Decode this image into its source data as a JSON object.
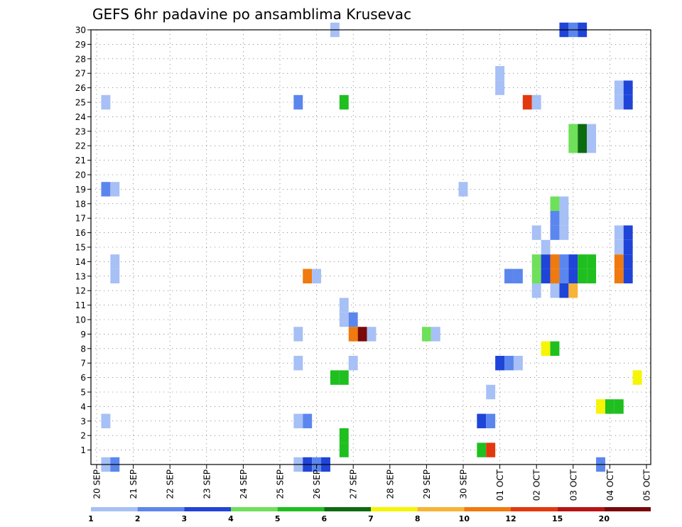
{
  "chart_data": {
    "type": "heatmap",
    "title": "GEFS 6hr padavine po ansamblima Krusevac",
    "y_ticks": [
      "1",
      "2",
      "3",
      "4",
      "5",
      "6",
      "7",
      "8",
      "9",
      "10",
      "11",
      "12",
      "13",
      "14",
      "15",
      "16",
      "17",
      "18",
      "19",
      "20",
      "21",
      "22",
      "23",
      "24",
      "25",
      "26",
      "27",
      "28",
      "29",
      "30"
    ],
    "x_ticks": [
      "20 SEP",
      "21 SEP",
      "22 SEP",
      "23 SEP",
      "24 SEP",
      "25 SEP",
      "26 SEP",
      "27 SEP",
      "28 SEP",
      "29 SEP",
      "30 SEP",
      "01 OCT",
      "02 OCT",
      "03 OCT",
      "04 OCT",
      "05 OCT"
    ],
    "grid": true,
    "legend_position": "bottom",
    "color_scale": [
      {
        "label": "1",
        "color": "#a7c0f5"
      },
      {
        "label": "2",
        "color": "#5b86ee"
      },
      {
        "label": "3",
        "color": "#1f44d8"
      },
      {
        "label": "4",
        "color": "#6fe05a"
      },
      {
        "label": "5",
        "color": "#1fbf1f"
      },
      {
        "label": "6",
        "color": "#0b6b10"
      },
      {
        "label": "7",
        "color": "#f5f505"
      },
      {
        "label": "8",
        "color": "#f7b436"
      },
      {
        "label": "10",
        "color": "#f07a0e"
      },
      {
        "label": "12",
        "color": "#e3380e"
      },
      {
        "label": "15",
        "color": "#b81414"
      },
      {
        "label": "20",
        "color": "#7a0909"
      }
    ],
    "cells": [
      {
        "x": "20 SEP 06Z",
        "member": 0,
        "level": 1
      },
      {
        "x": "20 SEP 12Z",
        "member": 0,
        "level": 2
      },
      {
        "x": "20 SEP 06Z",
        "member": 3,
        "level": 1
      },
      {
        "x": "20 SEP 12Z",
        "member": 13,
        "level": 1
      },
      {
        "x": "20 SEP 12Z",
        "member": 14,
        "level": 1
      },
      {
        "x": "20 SEP 06Z",
        "member": 19,
        "level": 2
      },
      {
        "x": "20 SEP 12Z",
        "member": 19,
        "level": 1
      },
      {
        "x": "20 SEP 06Z",
        "member": 25,
        "level": 1
      },
      {
        "x": "25 SEP 12Z",
        "member": 0,
        "level": 1
      },
      {
        "x": "25 SEP 18Z",
        "member": 0,
        "level": 3
      },
      {
        "x": "26 SEP 00Z",
        "member": 0,
        "level": 2
      },
      {
        "x": "26 SEP 06Z",
        "member": 0,
        "level": 3
      },
      {
        "x": "25 SEP 12Z",
        "member": 3,
        "level": 1
      },
      {
        "x": "25 SEP 18Z",
        "member": 3,
        "level": 2
      },
      {
        "x": "25 SEP 12Z",
        "member": 7,
        "level": 1
      },
      {
        "x": "25 SEP 12Z",
        "member": 9,
        "level": 1
      },
      {
        "x": "25 SEP 18Z",
        "member": 13,
        "level": 10
      },
      {
        "x": "26 SEP 00Z",
        "member": 13,
        "level": 1
      },
      {
        "x": "25 SEP 12Z",
        "member": 25,
        "level": 2
      },
      {
        "x": "26 SEP 12Z",
        "member": 30,
        "level": 1
      },
      {
        "x": "26 SEP 18Z",
        "member": 1,
        "level": 5
      },
      {
        "x": "26 SEP 18Z",
        "member": 2,
        "level": 5
      },
      {
        "x": "26 SEP 12Z",
        "member": 6,
        "level": 5
      },
      {
        "x": "26 SEP 18Z",
        "member": 6,
        "level": 5
      },
      {
        "x": "27 SEP 00Z",
        "member": 7,
        "level": 1
      },
      {
        "x": "27 SEP 00Z",
        "member": 9,
        "level": 10
      },
      {
        "x": "27 SEP 06Z",
        "member": 9,
        "level": 20
      },
      {
        "x": "27 SEP 12Z",
        "member": 9,
        "level": 1
      },
      {
        "x": "26 SEP 18Z",
        "member": 10,
        "level": 1
      },
      {
        "x": "27 SEP 00Z",
        "member": 10,
        "level": 2
      },
      {
        "x": "26 SEP 18Z",
        "member": 11,
        "level": 1
      },
      {
        "x": "26 SEP 18Z",
        "member": 25,
        "level": 5
      },
      {
        "x": "29 SEP 00Z",
        "member": 9,
        "level": 4
      },
      {
        "x": "29 SEP 06Z",
        "member": 9,
        "level": 1
      },
      {
        "x": "30 SEP 00Z",
        "member": 19,
        "level": 1
      },
      {
        "x": "30 SEP 12Z",
        "member": 1,
        "level": 5
      },
      {
        "x": "30 SEP 18Z",
        "member": 1,
        "level": 12
      },
      {
        "x": "30 SEP 12Z",
        "member": 3,
        "level": 3
      },
      {
        "x": "30 SEP 18Z",
        "member": 3,
        "level": 2
      },
      {
        "x": "30 SEP 18Z",
        "member": 5,
        "level": 1
      },
      {
        "x": "01 OCT 00Z",
        "member": 7,
        "level": 3
      },
      {
        "x": "01 OCT 06Z",
        "member": 7,
        "level": 2
      },
      {
        "x": "01 OCT 12Z",
        "member": 7,
        "level": 1
      },
      {
        "x": "01 OCT 06Z",
        "member": 13,
        "level": 2
      },
      {
        "x": "01 OCT 12Z",
        "member": 13,
        "level": 2
      },
      {
        "x": "01 OCT 00Z",
        "member": 26,
        "level": 1
      },
      {
        "x": "01 OCT 00Z",
        "member": 27,
        "level": 1
      },
      {
        "x": "01 OCT 18Z",
        "member": 25,
        "level": 12
      },
      {
        "x": "02 OCT 00Z",
        "member": 25,
        "level": 1
      },
      {
        "x": "02 OCT 06Z",
        "member": 8,
        "level": 7
      },
      {
        "x": "02 OCT 12Z",
        "member": 8,
        "level": 5
      },
      {
        "x": "02 OCT 00Z",
        "member": 12,
        "level": 1
      },
      {
        "x": "02 OCT 12Z",
        "member": 12,
        "level": 1
      },
      {
        "x": "02 OCT 18Z",
        "member": 12,
        "level": 3
      },
      {
        "x": "03 OCT 00Z",
        "member": 12,
        "level": 8
      },
      {
        "x": "02 OCT 00Z",
        "member": 13,
        "level": 4
      },
      {
        "x": "02 OCT 06Z",
        "member": 13,
        "level": 3
      },
      {
        "x": "02 OCT 12Z",
        "member": 13,
        "level": 10
      },
      {
        "x": "02 OCT 18Z",
        "member": 13,
        "level": 2
      },
      {
        "x": "03 OCT 00Z",
        "member": 13,
        "level": 3
      },
      {
        "x": "03 OCT 06Z",
        "member": 13,
        "level": 5
      },
      {
        "x": "03 OCT 12Z",
        "member": 13,
        "level": 5
      },
      {
        "x": "02 OCT 00Z",
        "member": 14,
        "level": 4
      },
      {
        "x": "02 OCT 06Z",
        "member": 14,
        "level": 3
      },
      {
        "x": "02 OCT 12Z",
        "member": 14,
        "level": 10
      },
      {
        "x": "02 OCT 18Z",
        "member": 14,
        "level": 2
      },
      {
        "x": "03 OCT 00Z",
        "member": 14,
        "level": 3
      },
      {
        "x": "03 OCT 06Z",
        "member": 14,
        "level": 5
      },
      {
        "x": "03 OCT 12Z",
        "member": 14,
        "level": 5
      },
      {
        "x": "02 OCT 06Z",
        "member": 15,
        "level": 1
      },
      {
        "x": "02 OCT 00Z",
        "member": 16,
        "level": 1
      },
      {
        "x": "02 OCT 12Z",
        "member": 16,
        "level": 2
      },
      {
        "x": "02 OCT 18Z",
        "member": 16,
        "level": 1
      },
      {
        "x": "02 OCT 12Z",
        "member": 17,
        "level": 2
      },
      {
        "x": "02 OCT 18Z",
        "member": 17,
        "level": 1
      },
      {
        "x": "02 OCT 12Z",
        "member": 18,
        "level": 4
      },
      {
        "x": "02 OCT 18Z",
        "member": 18,
        "level": 1
      },
      {
        "x": "03 OCT 00Z",
        "member": 22,
        "level": 4
      },
      {
        "x": "03 OCT 06Z",
        "member": 22,
        "level": 6
      },
      {
        "x": "03 OCT 12Z",
        "member": 22,
        "level": 1
      },
      {
        "x": "03 OCT 00Z",
        "member": 23,
        "level": 4
      },
      {
        "x": "03 OCT 06Z",
        "member": 23,
        "level": 6
      },
      {
        "x": "03 OCT 12Z",
        "member": 23,
        "level": 1
      },
      {
        "x": "02 OCT 18Z",
        "member": 30,
        "level": 3
      },
      {
        "x": "03 OCT 00Z",
        "member": 30,
        "level": 2
      },
      {
        "x": "03 OCT 06Z",
        "member": 30,
        "level": 3
      },
      {
        "x": "03 OCT 18Z",
        "member": 4,
        "level": 7
      },
      {
        "x": "04 OCT 00Z",
        "member": 4,
        "level": 5
      },
      {
        "x": "04 OCT 06Z",
        "member": 4,
        "level": 5
      },
      {
        "x": "03 OCT 18Z",
        "member": 0,
        "level": 2
      },
      {
        "x": "04 OCT 06Z",
        "member": 13,
        "level": 10
      },
      {
        "x": "04 OCT 06Z",
        "member": 14,
        "level": 10
      },
      {
        "x": "04 OCT 18Z",
        "member": 6,
        "level": 7
      },
      {
        "x": "04 OCT 12Z",
        "member": 13,
        "level": 3
      },
      {
        "x": "04 OCT 12Z",
        "member": 14,
        "level": 3
      },
      {
        "x": "04 OCT 06Z",
        "member": 15,
        "level": 1
      },
      {
        "x": "04 OCT 12Z",
        "member": 15,
        "level": 3
      },
      {
        "x": "04 OCT 06Z",
        "member": 16,
        "level": 1
      },
      {
        "x": "04 OCT 12Z",
        "member": 16,
        "level": 3
      },
      {
        "x": "04 OCT 06Z",
        "member": 25,
        "level": 1
      },
      {
        "x": "04 OCT 12Z",
        "member": 25,
        "level": 3
      },
      {
        "x": "04 OCT 06Z",
        "member": 26,
        "level": 1
      },
      {
        "x": "04 OCT 12Z",
        "member": 26,
        "level": 3
      }
    ]
  }
}
